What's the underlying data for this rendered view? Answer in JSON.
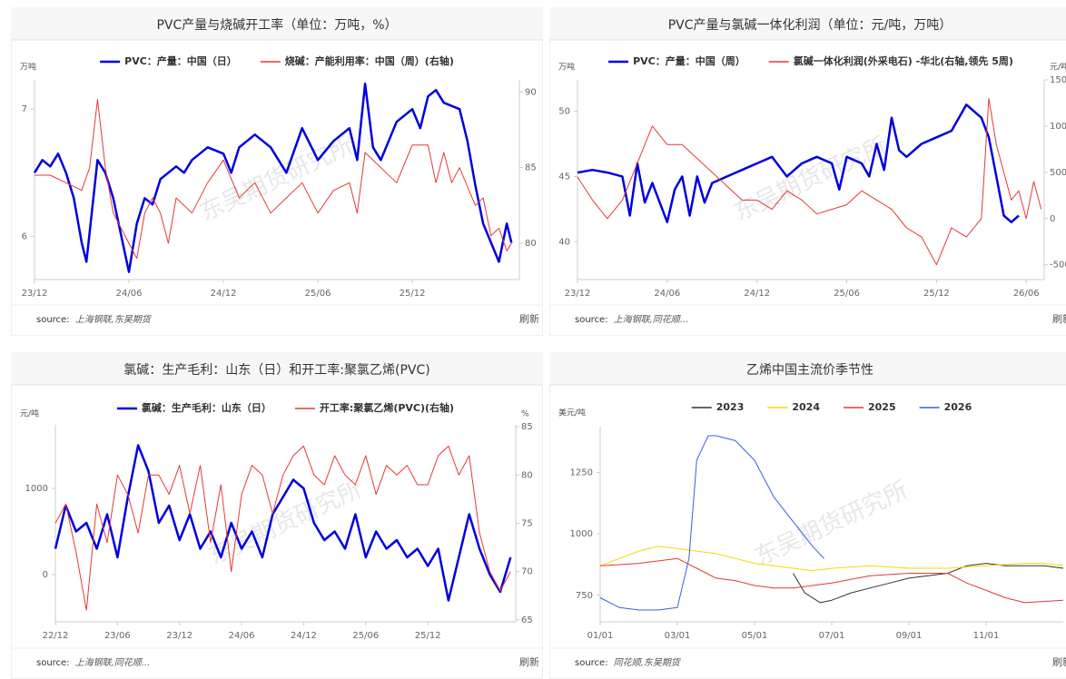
{
  "chart_data": [
    {
      "type": "line",
      "title": "PVC产量与烧碱开工率（单位：万吨，%）",
      "y_unit": "万吨",
      "legend": "top",
      "source_label": "source:",
      "source": "上海钢联,东吴期货",
      "refresh": "刷新",
      "watermark": "东吴期货研究所",
      "xlim": [
        0,
        30.8
      ],
      "xticks": [
        {
          "value": 0,
          "label": "23/12"
        },
        {
          "value": 6,
          "label": "24/06"
        },
        {
          "value": 12,
          "label": "24/12"
        },
        {
          "value": 18,
          "label": "25/06"
        },
        {
          "value": 24,
          "label": "25/12"
        }
      ],
      "ylim": [
        5.66,
        7.23
      ],
      "yticks": [
        6,
        7
      ],
      "y2lim": [
        77.6,
        90.8
      ],
      "y2ticks": [
        80,
        85,
        90
      ],
      "series": [
        {
          "name": "PVC：产量：中国（日）",
          "color": "#0000e0",
          "width": 2.5,
          "x": [
            0,
            0.5,
            1,
            1.5,
            2,
            2.5,
            3,
            3.3,
            4,
            4.5,
            5,
            6,
            6.5,
            7,
            7.5,
            8,
            9,
            9.5,
            10,
            11,
            12,
            12.5,
            13,
            14,
            15,
            16,
            17,
            18,
            19,
            20,
            20.5,
            21,
            21.5,
            22,
            23,
            24,
            24.5,
            25,
            25.5,
            26,
            27,
            27.5,
            28,
            28.5,
            29,
            29.5,
            30,
            30.3
          ],
          "values": [
            6.5,
            6.6,
            6.55,
            6.65,
            6.5,
            6.3,
            5.95,
            5.8,
            6.6,
            6.5,
            6.3,
            5.72,
            6.1,
            6.3,
            6.25,
            6.45,
            6.55,
            6.5,
            6.6,
            6.7,
            6.65,
            6.5,
            6.7,
            6.8,
            6.7,
            6.5,
            6.85,
            6.6,
            6.75,
            6.85,
            6.6,
            7.2,
            6.7,
            6.6,
            6.9,
            7.0,
            6.85,
            7.1,
            7.15,
            7.05,
            7.0,
            6.75,
            6.4,
            6.1,
            5.95,
            5.8,
            6.1,
            5.95
          ]
        },
        {
          "name": "烧碱：产能利用率：中国（周）(右轴)",
          "color": "#e53935",
          "width": 1,
          "axis": "y2",
          "x": [
            0,
            1,
            2,
            3,
            3.5,
            4,
            4.5,
            5,
            6,
            6.5,
            7,
            7.5,
            8,
            8.5,
            9,
            10,
            11,
            12,
            13,
            14,
            15,
            16,
            17,
            18,
            19,
            20,
            20.5,
            21,
            22,
            23,
            24,
            25,
            25.5,
            26,
            26.5,
            27,
            28,
            28.5,
            29,
            29.5,
            30,
            30.3
          ],
          "values": [
            84.5,
            84.5,
            84,
            83.5,
            85,
            89.5,
            85,
            82,
            80,
            79,
            82,
            83,
            82,
            80,
            83,
            82,
            84,
            85.5,
            83,
            84,
            82,
            83,
            84,
            82,
            83.5,
            84,
            82,
            86,
            85,
            84,
            86.5,
            86.5,
            84,
            86,
            84,
            85,
            82.5,
            83,
            80.5,
            81,
            79.5,
            80
          ]
        }
      ]
    },
    {
      "type": "line",
      "title": "PVC产量与氯碱一体化利润（单位：元/吨，万吨）",
      "y_unit": "万吨",
      "y2_unit": "元/吨",
      "legend": "top",
      "source_label": "source:",
      "source": "上海钢联,同花顺...",
      "refresh": "刷新",
      "watermark": "东吴期货研究所",
      "xlim": [
        0,
        31.2
      ],
      "xticks": [
        {
          "value": 0,
          "label": "23/12"
        },
        {
          "value": 6,
          "label": "24/06"
        },
        {
          "value": 12,
          "label": "24/12"
        },
        {
          "value": 18,
          "label": "25/06"
        },
        {
          "value": 24,
          "label": "25/12"
        },
        {
          "value": 30,
          "label": "26/06"
        }
      ],
      "ylim": [
        37.1,
        52.4
      ],
      "yticks": [
        40,
        45,
        50
      ],
      "y2lim": [
        -660,
        1500
      ],
      "y2ticks": [
        -500,
        0,
        500,
        1000,
        1500
      ],
      "series": [
        {
          "name": "PVC：产量：中国（周）",
          "color": "#0000e0",
          "width": 2.5,
          "x": [
            0,
            1,
            2,
            3,
            3.5,
            4,
            4.5,
            5,
            6,
            6.5,
            7,
            7.5,
            8,
            8.5,
            9,
            10,
            11,
            12,
            13,
            14,
            15,
            16,
            17,
            17.5,
            18,
            19,
            19.5,
            20,
            20.5,
            21,
            21.5,
            22,
            23,
            24,
            25,
            26,
            27,
            27.5,
            28,
            28.5,
            29,
            29.5
          ],
          "values": [
            45.3,
            45.5,
            45.3,
            45,
            42,
            46,
            43,
            44.5,
            41.5,
            44,
            45,
            42,
            45,
            43,
            44.5,
            45,
            45.5,
            46,
            46.5,
            45,
            46,
            46.5,
            46,
            44,
            46.5,
            46,
            45,
            47.5,
            45.5,
            49.5,
            47,
            46.5,
            47.5,
            48,
            48.5,
            50.5,
            49.5,
            48,
            45,
            42,
            41.5,
            42
          ]
        },
        {
          "name": "氯碱一体化利润(外采电石) -华北(右轴,领先 5周)",
          "color": "#e53935",
          "width": 1,
          "axis": "y2",
          "x": [
            0,
            1,
            2,
            3,
            4,
            5,
            6,
            7,
            8,
            9,
            10,
            11,
            12,
            13,
            14,
            15,
            16,
            17,
            18,
            19,
            20,
            21,
            22,
            23,
            24,
            25,
            26,
            27,
            27.5,
            28,
            28.5,
            29,
            29.5,
            30,
            30.5,
            31
          ],
          "values": [
            450,
            200,
            0,
            200,
            600,
            1000,
            800,
            800,
            650,
            500,
            350,
            200,
            200,
            100,
            300,
            200,
            50,
            100,
            150,
            300,
            200,
            100,
            -100,
            -200,
            -500,
            -100,
            -200,
            0,
            1300,
            800,
            500,
            200,
            300,
            0,
            400,
            100
          ]
        }
      ]
    },
    {
      "type": "line",
      "title": "氯碱：生产毛利：山东（日）和开工率:聚氯乙烯(PVC)",
      "y_unit": "元/吨",
      "y2_unit": "%",
      "legend": "top",
      "source_label": "source:",
      "source": "上海钢联,同花顺...",
      "refresh": "刷新",
      "watermark": "东吴期货研究所",
      "xlim": [
        0,
        44.5
      ],
      "xticks": [
        {
          "value": 0,
          "label": "22/12"
        },
        {
          "value": 6,
          "label": "23/06"
        },
        {
          "value": 12,
          "label": "23/12"
        },
        {
          "value": 18,
          "label": "24/06"
        },
        {
          "value": 24,
          "label": "24/12"
        },
        {
          "value": 30,
          "label": "25/06"
        },
        {
          "value": 36,
          "label": "25/12"
        }
      ],
      "ylim": [
        -547,
        1737
      ],
      "yticks": [
        0,
        1000
      ],
      "y2lim": [
        64.8,
        85.2
      ],
      "y2ticks": [
        65,
        70,
        75,
        80,
        85
      ],
      "series": [
        {
          "name": "氯碱：生产毛利：山东（日）",
          "color": "#0000e0",
          "width": 2.5,
          "x": [
            0,
            1,
            2,
            3,
            4,
            5,
            6,
            7,
            8,
            9,
            10,
            11,
            12,
            13,
            14,
            15,
            16,
            17,
            18,
            19,
            20,
            21,
            22,
            23,
            24,
            25,
            26,
            27,
            28,
            29,
            30,
            31,
            32,
            33,
            34,
            35,
            36,
            37,
            38,
            39,
            40,
            41,
            42,
            43,
            44
          ],
          "values": [
            300,
            800,
            500,
            600,
            300,
            700,
            200,
            900,
            1500,
            1200,
            600,
            800,
            400,
            700,
            300,
            500,
            200,
            600,
            300,
            500,
            200,
            700,
            900,
            1100,
            1000,
            600,
            400,
            500,
            300,
            700,
            200,
            500,
            300,
            400,
            200,
            300,
            100,
            300,
            -300,
            200,
            700,
            300,
            0,
            -200,
            200
          ]
        },
        {
          "name": "开工率:聚氯乙烯(PVC)(右轴)",
          "color": "#e53935",
          "width": 1,
          "axis": "y2",
          "x": [
            0,
            1,
            2,
            3,
            4,
            5,
            6,
            7,
            8,
            9,
            10,
            11,
            12,
            13,
            14,
            15,
            16,
            17,
            18,
            19,
            20,
            21,
            22,
            23,
            24,
            25,
            26,
            27,
            28,
            29,
            30,
            31,
            32,
            33,
            34,
            35,
            36,
            37,
            38,
            39,
            40,
            41,
            42,
            43,
            44
          ],
          "values": [
            75,
            77,
            72,
            66,
            77,
            73,
            80,
            78,
            74,
            80,
            80,
            78,
            81,
            76,
            81,
            73,
            79,
            70,
            78,
            81,
            80,
            76,
            80,
            82,
            83,
            80,
            79,
            82,
            80,
            79,
            82,
            78,
            81,
            80,
            81,
            79,
            79,
            82,
            83,
            80,
            82,
            74,
            70,
            68,
            70
          ]
        }
      ]
    },
    {
      "type": "line",
      "title": "乙烯中国主流价季节性",
      "y_unit": "美元/吨",
      "legend": "top",
      "source_label": "source:",
      "source": "同花顺,东吴期货",
      "refresh": "刷新",
      "watermark": "东吴期货研究所",
      "xlim": [
        0,
        12
      ],
      "xticks": [
        {
          "value": 0,
          "label": "01/01"
        },
        {
          "value": 2,
          "label": "03/01"
        },
        {
          "value": 4,
          "label": "05/01"
        },
        {
          "value": 6,
          "label": "07/01"
        },
        {
          "value": 8,
          "label": "09/01"
        },
        {
          "value": 10,
          "label": "11/01"
        }
      ],
      "ylim": [
        642,
        1437
      ],
      "yticks": [
        750,
        1000,
        1250
      ],
      "series": [
        {
          "name": "2023",
          "color": "#333333",
          "width": 1,
          "x": [
            5,
            5.3,
            5.7,
            6,
            6.5,
            7,
            7.5,
            8,
            8.5,
            9,
            9.5,
            10,
            10.5,
            11,
            11.5,
            12
          ],
          "values": [
            840,
            760,
            720,
            730,
            760,
            780,
            800,
            820,
            830,
            840,
            870,
            880,
            870,
            870,
            870,
            860
          ]
        },
        {
          "name": "2024",
          "color": "#f5d800",
          "width": 1,
          "x": [
            0,
            0.5,
            1,
            1.5,
            2,
            2.5,
            3,
            3.5,
            4,
            4.5,
            5,
            5.5,
            6,
            7,
            8,
            9,
            10,
            11,
            11.5,
            12
          ],
          "values": [
            870,
            900,
            930,
            950,
            940,
            930,
            920,
            900,
            880,
            870,
            860,
            850,
            860,
            870,
            860,
            860,
            870,
            880,
            880,
            870
          ]
        },
        {
          "name": "2025",
          "color": "#e53935",
          "width": 1,
          "x": [
            0,
            1,
            2,
            2.5,
            3,
            3.5,
            4,
            4.5,
            5,
            6,
            7,
            8,
            9,
            9.5,
            10,
            10.5,
            11,
            12
          ],
          "values": [
            870,
            880,
            900,
            860,
            820,
            810,
            790,
            780,
            780,
            800,
            830,
            840,
            840,
            800,
            770,
            740,
            720,
            730
          ]
        },
        {
          "name": "2026",
          "color": "#3a5fe0",
          "width": 1,
          "x": [
            0,
            0.5,
            1,
            1.5,
            2,
            2.3,
            2.5,
            2.8,
            3,
            3.5,
            4,
            4.5,
            5,
            5.5,
            5.8
          ],
          "values": [
            740,
            700,
            690,
            690,
            700,
            900,
            1300,
            1400,
            1400,
            1380,
            1300,
            1150,
            1050,
            950,
            900
          ]
        }
      ]
    }
  ]
}
